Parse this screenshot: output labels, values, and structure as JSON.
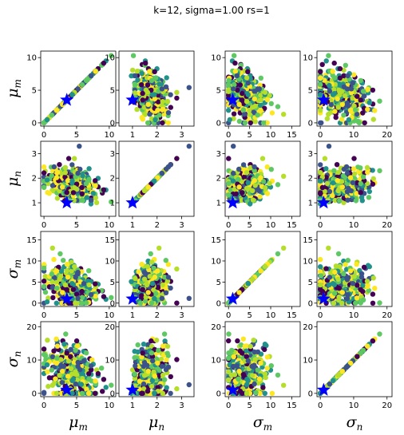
{
  "chart_data": {
    "type": "scatter",
    "title": "k=12, sigma=1.00 rs=1",
    "variables": [
      {
        "label": "μ",
        "sub": "m",
        "range": [
          -0.5,
          11
        ],
        "ticks": [
          0,
          5,
          10
        ]
      },
      {
        "label": "μ",
        "sub": "n",
        "range": [
          0.45,
          3.5
        ],
        "ticks": [
          1,
          2,
          3
        ]
      },
      {
        "label": "σ",
        "sub": "m",
        "range": [
          -0.8,
          17
        ],
        "ticks": [
          0,
          5,
          10,
          15
        ]
      },
      {
        "label": "σ",
        "sub": "n",
        "range": [
          -1,
          21.5
        ],
        "ticks": [
          0,
          10,
          20
        ]
      }
    ],
    "true_point": {
      "mu_m": 3.5,
      "mu_n": 1.0,
      "sigma_m": 1.0,
      "sigma_n": 1.0,
      "color": "#0000ff",
      "marker": "star"
    },
    "point_colormap": [
      "#440154",
      "#3b528b",
      "#21918c",
      "#5ec962",
      "#b5de2b",
      "#fde725"
    ],
    "n_points": 360,
    "grid": false,
    "layout": "4x4 pair-plot grid"
  }
}
